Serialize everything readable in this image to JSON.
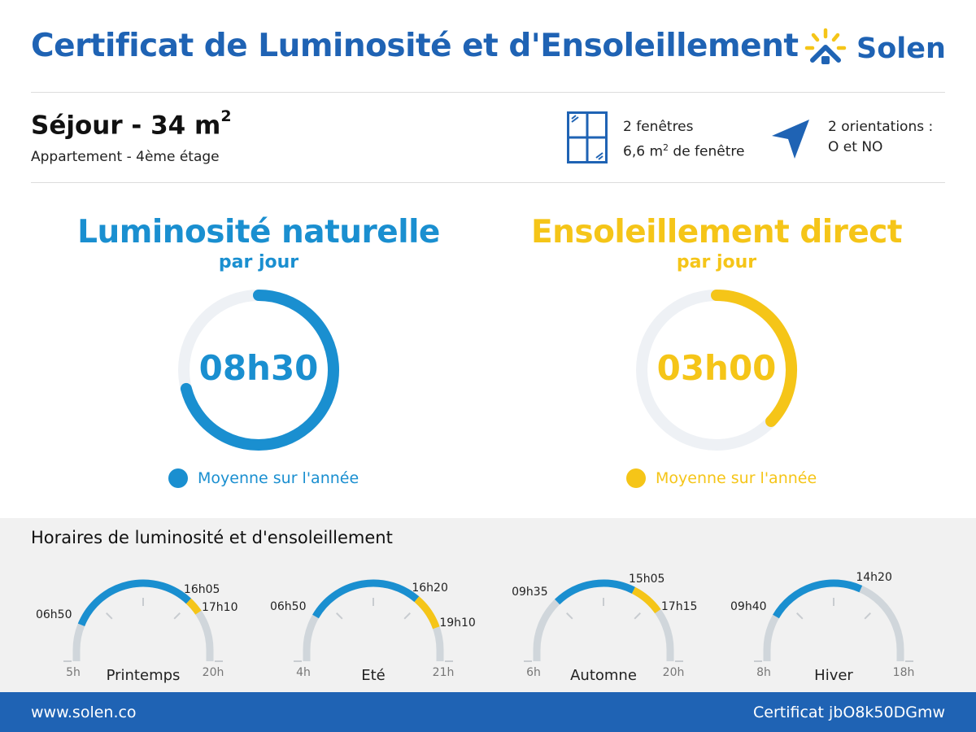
{
  "header": {
    "title": "Certificat de Luminosité et d'Ensoleillement",
    "brand": "Solen",
    "logo_icon": "sun-house-logo-icon"
  },
  "room": {
    "name": "Séjour - 34 m",
    "area_exponent": "2",
    "subtitle": "Appartement - 4ème étage"
  },
  "windows": {
    "icon": "window-icon",
    "line1": "2 fenêtres",
    "line2_prefix": "6,6 m",
    "line2_exponent": "2",
    "line2_suffix": " de fenêtre"
  },
  "orientation": {
    "icon": "direction-arrow-icon",
    "line1": "2 orientations :",
    "line2": "O et NO"
  },
  "luminosity": {
    "title": "Luminosité naturelle",
    "subtitle": "par jour",
    "value": "08h30",
    "fraction": 0.71,
    "legend": "Moyenne sur l'année",
    "color": "#1a8fd0"
  },
  "sunshine": {
    "title": "Ensoleillement direct",
    "subtitle": "par jour",
    "value": "03h00",
    "fraction": 0.37,
    "legend": "Moyenne sur l'année",
    "color": "#f5c518"
  },
  "schedule": {
    "title": "Horaires de luminosité et d'ensoleillement",
    "colors": {
      "light": "#1a8fd0",
      "sun": "#f5c518",
      "track": "#d0d6db"
    },
    "seasons": [
      {
        "name": "Printemps",
        "axis_start": "5h",
        "axis_end": "20h",
        "range_start": 5,
        "range_end": 20,
        "light_start": 6.833,
        "light_end": 16.083,
        "sun_start": 16.083,
        "sun_end": 17.167,
        "label_light_start": "06h50",
        "label_light_end": "16h05",
        "label_sun_end": "17h10"
      },
      {
        "name": "Eté",
        "axis_start": "4h",
        "axis_end": "21h",
        "range_start": 4,
        "range_end": 21,
        "light_start": 6.833,
        "light_end": 16.333,
        "sun_start": 16.333,
        "sun_end": 19.167,
        "label_light_start": "06h50",
        "label_light_end": "16h20",
        "label_sun_end": "19h10"
      },
      {
        "name": "Automne",
        "axis_start": "6h",
        "axis_end": "20h",
        "range_start": 6,
        "range_end": 20,
        "light_start": 9.583,
        "light_end": 15.083,
        "sun_start": 15.083,
        "sun_end": 17.25,
        "label_light_start": "09h35",
        "label_light_end": "15h05",
        "label_sun_end": "17h15"
      },
      {
        "name": "Hiver",
        "axis_start": "8h",
        "axis_end": "18h",
        "range_start": 8,
        "range_end": 18,
        "light_start": 9.667,
        "light_end": 14.333,
        "sun_start": null,
        "sun_end": null,
        "label_light_start": "09h40",
        "label_light_end": "14h20",
        "label_sun_end": ""
      }
    ]
  },
  "footer": {
    "website": "www.solen.co",
    "certificate": "Certificat jbO8k50DGmw"
  }
}
